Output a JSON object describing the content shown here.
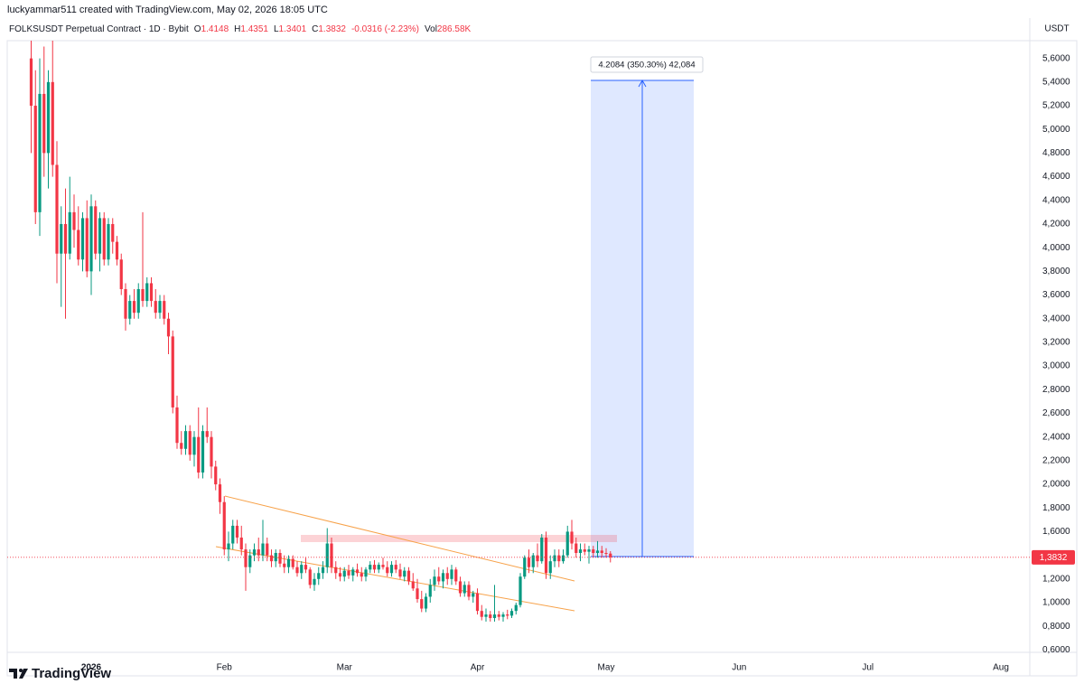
{
  "header": "luckyammar511 created with TradingView.com, May 02, 2026 18:05 UTC",
  "legend": {
    "symbol": "FOLKSUSDT Perpetual Contract · 1D · Bybit",
    "items": [
      {
        "key": "O",
        "value": "1.4148"
      },
      {
        "key": "H",
        "value": "1.4351"
      },
      {
        "key": "L",
        "value": "1.3401"
      },
      {
        "key": "C",
        "value": "1.3832"
      }
    ],
    "change": "-0.0316 (-2.23%)",
    "volume": {
      "key": "Vol",
      "value": "286.58K"
    }
  },
  "currency": "USDT",
  "logo": "TradingView",
  "chart_data": {
    "type": "candlestick",
    "x": [
      "2025-12-18",
      "2025-12-19",
      "2025-12-20",
      "2025-12-21",
      "2025-12-22",
      "2025-12-23",
      "2025-12-24",
      "2025-12-25",
      "2025-12-26",
      "2025-12-27",
      "2025-12-28",
      "2025-12-29",
      "2025-12-30",
      "2025-12-31",
      "2026-01-01",
      "2026-01-02",
      "2026-01-03",
      "2026-01-04",
      "2026-01-05",
      "2026-01-06",
      "2026-01-07",
      "2026-01-08",
      "2026-01-09",
      "2026-01-10",
      "2026-01-11",
      "2026-01-12",
      "2026-01-13",
      "2026-01-14",
      "2026-01-15",
      "2026-01-16",
      "2026-01-17",
      "2026-01-18",
      "2026-01-19",
      "2026-01-20",
      "2026-01-21",
      "2026-01-22",
      "2026-01-23",
      "2026-01-24",
      "2026-01-25",
      "2026-01-26",
      "2026-01-27",
      "2026-01-28",
      "2026-01-29",
      "2026-01-30",
      "2026-01-31",
      "2026-02-01",
      "2026-02-02",
      "2026-02-03",
      "2026-02-04",
      "2026-02-05",
      "2026-02-06",
      "2026-02-07",
      "2026-02-08",
      "2026-02-09",
      "2026-02-10",
      "2026-02-11",
      "2026-02-12",
      "2026-02-13",
      "2026-02-14",
      "2026-02-15",
      "2026-02-16",
      "2026-02-17",
      "2026-02-18",
      "2026-02-19",
      "2026-02-20",
      "2026-02-21",
      "2026-02-22",
      "2026-02-23",
      "2026-02-24",
      "2026-02-25",
      "2026-02-26",
      "2026-02-27",
      "2026-02-28",
      "2026-03-01",
      "2026-03-02",
      "2026-03-03",
      "2026-03-04",
      "2026-03-05",
      "2026-03-06",
      "2026-03-07",
      "2026-03-08",
      "2026-03-09",
      "2026-03-10",
      "2026-03-11",
      "2026-03-12",
      "2026-03-13",
      "2026-03-14",
      "2026-03-15",
      "2026-03-16",
      "2026-03-17",
      "2026-03-18",
      "2026-03-19",
      "2026-03-20",
      "2026-03-21",
      "2026-03-22",
      "2026-03-23",
      "2026-03-24",
      "2026-03-25",
      "2026-03-26",
      "2026-03-27",
      "2026-03-28",
      "2026-03-29",
      "2026-03-30",
      "2026-03-31",
      "2026-04-01",
      "2026-04-02",
      "2026-04-03",
      "2026-04-04",
      "2026-04-05",
      "2026-04-06",
      "2026-04-07",
      "2026-04-08",
      "2026-04-09",
      "2026-04-10",
      "2026-04-11",
      "2026-04-12",
      "2026-04-13",
      "2026-04-14",
      "2026-04-15",
      "2026-04-16",
      "2026-04-17",
      "2026-04-18",
      "2026-04-19",
      "2026-04-20",
      "2026-04-21",
      "2026-04-22",
      "2026-04-23",
      "2026-04-24",
      "2026-04-25",
      "2026-04-26",
      "2026-04-27",
      "2026-04-28",
      "2026-04-29",
      "2026-04-30",
      "2026-05-01",
      "2026-05-02"
    ],
    "open": [
      5.6,
      5.2,
      4.3,
      5.3,
      4.8,
      5.4,
      4.7,
      3.95,
      4.2,
      3.95,
      4.3,
      4.15,
      3.9,
      4.25,
      3.8,
      4.35,
      3.95,
      4.25,
      3.9,
      4.2,
      4.05,
      3.9,
      3.65,
      3.4,
      3.55,
      3.45,
      3.65,
      3.55,
      3.7,
      3.55,
      3.45,
      3.55,
      3.4,
      3.25,
      2.65,
      2.35,
      2.3,
      2.45,
      2.25,
      2.4,
      2.1,
      2.45,
      2.4,
      2.15,
      2.0,
      1.85,
      1.45,
      1.5,
      1.65,
      1.55,
      1.45,
      1.3,
      1.4,
      1.45,
      1.4,
      1.5,
      1.4,
      1.35,
      1.42,
      1.33,
      1.3,
      1.37,
      1.3,
      1.25,
      1.32,
      1.28,
      1.15,
      1.2,
      1.25,
      1.3,
      1.5,
      1.3,
      1.25,
      1.22,
      1.27,
      1.23,
      1.28,
      1.25,
      1.22,
      1.28,
      1.32,
      1.28,
      1.32,
      1.3,
      1.25,
      1.32,
      1.28,
      1.22,
      1.27,
      1.18,
      1.12,
      1.03,
      0.95,
      1.05,
      1.15,
      1.22,
      1.18,
      1.25,
      1.2,
      1.28,
      1.18,
      1.08,
      1.15,
      1.05,
      1.08,
      0.93,
      0.88,
      0.9,
      0.87,
      0.9,
      0.88,
      0.9,
      0.89,
      0.93,
      0.98,
      1.22,
      1.38,
      1.3,
      1.4,
      1.35,
      1.55,
      1.25,
      1.35,
      1.4,
      1.35,
      1.4,
      1.6,
      1.5,
      1.42,
      1.45,
      1.43,
      1.45,
      1.42,
      1.44,
      1.42,
      1.4148
    ],
    "high": [
      5.75,
      5.5,
      5.6,
      5.7,
      5.5,
      5.75,
      4.9,
      4.35,
      4.5,
      4.6,
      4.45,
      4.35,
      4.3,
      4.4,
      4.45,
      4.4,
      4.3,
      4.3,
      4.25,
      4.25,
      4.1,
      3.95,
      3.7,
      3.6,
      3.65,
      3.7,
      4.3,
      3.75,
      3.75,
      3.65,
      3.6,
      3.6,
      3.45,
      3.3,
      2.75,
      2.45,
      2.5,
      2.5,
      2.45,
      2.65,
      2.5,
      2.65,
      2.45,
      2.2,
      2.05,
      1.9,
      1.6,
      1.7,
      1.7,
      1.65,
      1.5,
      1.45,
      1.5,
      1.55,
      1.7,
      1.55,
      1.45,
      1.45,
      1.45,
      1.4,
      1.4,
      1.4,
      1.35,
      1.35,
      1.38,
      1.3,
      1.25,
      1.3,
      1.35,
      1.63,
      1.55,
      1.35,
      1.3,
      1.3,
      1.32,
      1.3,
      1.33,
      1.3,
      1.3,
      1.35,
      1.36,
      1.34,
      1.38,
      1.35,
      1.35,
      1.36,
      1.33,
      1.3,
      1.3,
      1.25,
      1.2,
      1.1,
      1.08,
      1.2,
      1.28,
      1.3,
      1.28,
      1.3,
      1.32,
      1.3,
      1.22,
      1.18,
      1.18,
      1.1,
      1.12,
      0.98,
      0.95,
      0.93,
      1.15,
      0.93,
      0.92,
      0.94,
      0.95,
      1.0,
      1.25,
      1.4,
      1.45,
      1.42,
      1.5,
      1.58,
      1.6,
      1.4,
      1.45,
      1.45,
      1.45,
      1.65,
      1.7,
      1.55,
      1.5,
      1.5,
      1.48,
      1.48,
      1.52,
      1.48,
      1.46,
      1.4351
    ],
    "low": [
      4.8,
      4.2,
      4.1,
      4.6,
      4.5,
      4.6,
      3.7,
      3.5,
      3.4,
      3.9,
      4.0,
      3.85,
      3.8,
      3.75,
      3.6,
      3.9,
      3.8,
      3.85,
      3.85,
      3.95,
      3.85,
      3.6,
      3.3,
      3.35,
      3.4,
      3.4,
      3.5,
      3.5,
      3.5,
      3.4,
      3.4,
      3.35,
      3.1,
      2.6,
      2.3,
      2.25,
      2.25,
      2.2,
      2.15,
      2.05,
      2.05,
      2.35,
      2.05,
      1.95,
      1.75,
      1.4,
      1.35,
      1.45,
      1.5,
      1.4,
      1.1,
      1.25,
      1.35,
      1.35,
      1.35,
      1.35,
      1.3,
      1.3,
      1.3,
      1.25,
      1.25,
      1.28,
      1.22,
      1.2,
      1.25,
      1.12,
      1.1,
      1.15,
      1.2,
      1.25,
      1.25,
      1.2,
      1.18,
      1.18,
      1.2,
      1.18,
      1.22,
      1.18,
      1.18,
      1.25,
      1.25,
      1.25,
      1.28,
      1.22,
      1.22,
      1.25,
      1.2,
      1.18,
      1.15,
      1.1,
      1.0,
      0.92,
      0.92,
      1.0,
      1.1,
      1.15,
      1.12,
      1.15,
      1.15,
      1.15,
      1.05,
      1.05,
      1.02,
      1.0,
      0.9,
      0.85,
      0.84,
      0.84,
      0.84,
      0.85,
      0.84,
      0.86,
      0.87,
      0.9,
      0.96,
      1.2,
      1.25,
      1.25,
      1.3,
      1.33,
      1.2,
      1.2,
      1.3,
      1.3,
      1.33,
      1.38,
      1.45,
      1.38,
      1.35,
      1.4,
      1.33,
      1.38,
      1.38,
      1.38,
      1.38,
      1.3401
    ],
    "close": [
      5.2,
      4.3,
      5.3,
      4.8,
      5.4,
      4.7,
      3.95,
      4.2,
      3.95,
      4.3,
      4.15,
      3.9,
      4.25,
      3.8,
      4.35,
      3.95,
      4.25,
      3.9,
      4.2,
      4.05,
      3.9,
      3.65,
      3.4,
      3.55,
      3.45,
      3.65,
      3.55,
      3.7,
      3.55,
      3.45,
      3.55,
      3.4,
      3.25,
      2.65,
      2.35,
      2.3,
      2.45,
      2.25,
      2.4,
      2.1,
      2.45,
      2.4,
      2.15,
      2.0,
      1.85,
      1.45,
      1.5,
      1.65,
      1.55,
      1.45,
      1.3,
      1.4,
      1.45,
      1.4,
      1.5,
      1.4,
      1.35,
      1.42,
      1.33,
      1.3,
      1.37,
      1.3,
      1.25,
      1.32,
      1.28,
      1.15,
      1.2,
      1.25,
      1.3,
      1.5,
      1.3,
      1.25,
      1.22,
      1.27,
      1.23,
      1.28,
      1.25,
      1.22,
      1.28,
      1.32,
      1.28,
      1.32,
      1.3,
      1.25,
      1.32,
      1.28,
      1.22,
      1.27,
      1.18,
      1.12,
      1.03,
      0.95,
      1.05,
      1.15,
      1.22,
      1.18,
      1.25,
      1.2,
      1.28,
      1.18,
      1.08,
      1.15,
      1.05,
      1.08,
      0.93,
      0.88,
      0.9,
      0.87,
      0.9,
      0.88,
      0.9,
      0.89,
      0.93,
      0.98,
      1.22,
      1.38,
      1.3,
      1.4,
      1.35,
      1.55,
      1.25,
      1.35,
      1.4,
      1.35,
      1.4,
      1.6,
      1.5,
      1.42,
      1.45,
      1.43,
      1.45,
      1.42,
      1.44,
      1.42,
      1.4148,
      1.3832
    ],
    "up_color": "#089981",
    "down_color": "#f23645",
    "ylim": [
      0.58,
      5.75
    ],
    "yticks": [
      {
        "value": 0.6,
        "label": "0,6000"
      },
      {
        "value": 0.8,
        "label": "0,8000"
      },
      {
        "value": 1.0,
        "label": "1,0000"
      },
      {
        "value": 1.2,
        "label": "1,2000"
      },
      {
        "value": 1.4,
        "label": "1,4000"
      },
      {
        "value": 1.6,
        "label": "1,6000"
      },
      {
        "value": 1.8,
        "label": "1,8000"
      },
      {
        "value": 2.0,
        "label": "2,0000"
      },
      {
        "value": 2.2,
        "label": "2,2000"
      },
      {
        "value": 2.4,
        "label": "2,4000"
      },
      {
        "value": 2.6,
        "label": "2,6000"
      },
      {
        "value": 2.8,
        "label": "2,8000"
      },
      {
        "value": 3.0,
        "label": "3,0000"
      },
      {
        "value": 3.2,
        "label": "3,2000"
      },
      {
        "value": 3.4,
        "label": "3,4000"
      },
      {
        "value": 3.6,
        "label": "3,6000"
      },
      {
        "value": 3.8,
        "label": "3,8000"
      },
      {
        "value": 4.0,
        "label": "4,0000"
      },
      {
        "value": 4.2,
        "label": "4,2000"
      },
      {
        "value": 4.4,
        "label": "4,4000"
      },
      {
        "value": 4.6,
        "label": "4,6000"
      },
      {
        "value": 4.8,
        "label": "4,8000"
      },
      {
        "value": 5.0,
        "label": "5,0000"
      },
      {
        "value": 5.2,
        "label": "5,2000"
      },
      {
        "value": 5.4,
        "label": "5,4000"
      },
      {
        "value": 5.6,
        "label": "5,6000"
      }
    ],
    "xticks": [
      {
        "value": "2026-01-01",
        "label": "2026"
      },
      {
        "value": "2026-02-01",
        "label": "Feb"
      },
      {
        "value": "2026-03-01",
        "label": "Mar"
      },
      {
        "value": "2026-04-01",
        "label": "Apr"
      },
      {
        "value": "2026-05-01",
        "label": "May"
      },
      {
        "value": "2026-06-01",
        "label": "Jun"
      },
      {
        "value": "2026-07-01",
        "label": "Jul"
      },
      {
        "value": "2026-08-01",
        "label": "Aug"
      }
    ],
    "last_price": {
      "value": 1.3832,
      "label": "1,3832"
    },
    "annotation": "4.2084 (350.30%) 42,084",
    "grid": false
  }
}
